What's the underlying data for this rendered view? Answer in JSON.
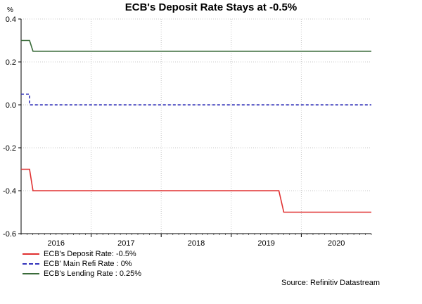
{
  "chart_data": {
    "type": "line",
    "title": "ECB's Deposit Rate Stays at -0.5%",
    "ylabel": "%",
    "xlabel": "",
    "xlim": [
      2015.5,
      2020.5
    ],
    "ylim": [
      -0.6,
      0.4
    ],
    "y_ticks": [
      0.4,
      0.2,
      0.0,
      -0.2,
      -0.4,
      -0.6
    ],
    "y_tick_labels": [
      "0.4",
      "0.2",
      "0.0",
      "-0.2",
      "-0.4",
      "-0.6"
    ],
    "x_ticks": [
      2016,
      2017,
      2018,
      2019,
      2020
    ],
    "x_tick_labels": [
      "2016",
      "2017",
      "2018",
      "2019",
      "2020"
    ],
    "grid": true,
    "legend_position": "bottom-left",
    "series": [
      {
        "name": "ECB's Deposit Rate: -0.5%",
        "color": "#e03030",
        "style": "solid",
        "x": [
          2015.5,
          2015.62,
          2015.67,
          2019.18,
          2019.25,
          2020.5
        ],
        "y": [
          -0.3,
          -0.3,
          -0.4,
          -0.4,
          -0.5,
          -0.5
        ]
      },
      {
        "name": "ECB' Main Refi Rate : 0%",
        "color": "#3333bb",
        "style": "dashed",
        "x": [
          2015.5,
          2015.62,
          2015.62,
          2020.5
        ],
        "y": [
          0.05,
          0.05,
          0.0,
          0.0
        ]
      },
      {
        "name": "ECB's Lending Rate : 0.25%",
        "color": "#3a6b3a",
        "style": "solid",
        "x": [
          2015.5,
          2015.62,
          2015.67,
          2020.5
        ],
        "y": [
          0.3,
          0.3,
          0.25,
          0.25
        ]
      }
    ]
  },
  "source": "Source: Refinitiv Datastream"
}
